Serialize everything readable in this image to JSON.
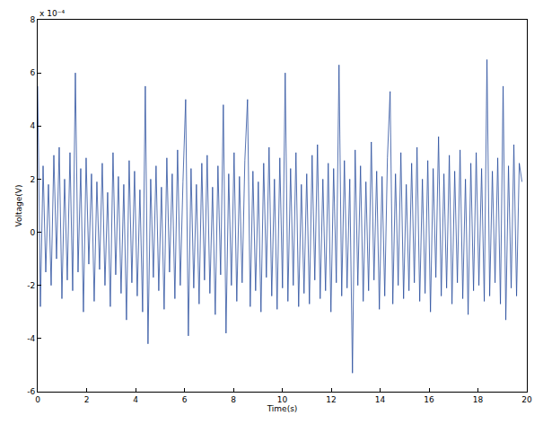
{
  "chart_data": {
    "type": "line",
    "x_label": "Time(s)",
    "y_label": "Voltage(V)",
    "annotations": [
      "x 10⁻⁴"
    ],
    "color": "#2b4f9e",
    "grid": false,
    "xlim": [
      0,
      20
    ],
    "xticks": [
      0,
      2,
      4,
      6,
      8,
      10,
      12,
      14,
      16,
      18,
      20
    ],
    "ylim": [
      -6,
      8
    ],
    "yticks": [
      -6,
      -4,
      -2,
      0,
      2,
      4,
      6,
      8
    ],
    "x": [
      0,
      0.11,
      0.22,
      0.33,
      0.44,
      0.55,
      0.66,
      0.77,
      0.88,
      0.99,
      1.1,
      1.21,
      1.32,
      1.43,
      1.54,
      1.65,
      1.76,
      1.87,
      1.98,
      2.09,
      2.2,
      2.31,
      2.42,
      2.53,
      2.64,
      2.75,
      2.86,
      2.97,
      3.08,
      3.19,
      3.3,
      3.41,
      3.52,
      3.63,
      3.74,
      3.85,
      3.96,
      4.07,
      4.18,
      4.29,
      4.4,
      4.51,
      4.62,
      4.73,
      4.84,
      4.95,
      5.06,
      5.17,
      5.28,
      5.39,
      5.5,
      5.61,
      5.72,
      5.83,
      5.94,
      6.05,
      6.16,
      6.27,
      6.38,
      6.49,
      6.6,
      6.71,
      6.82,
      6.93,
      7.04,
      7.15,
      7.26,
      7.37,
      7.48,
      7.59,
      7.7,
      7.81,
      7.92,
      8.03,
      8.14,
      8.25,
      8.36,
      8.47,
      8.58,
      8.69,
      8.8,
      8.91,
      9.02,
      9.13,
      9.24,
      9.35,
      9.46,
      9.57,
      9.68,
      9.79,
      9.9,
      10.01,
      10.12,
      10.23,
      10.34,
      10.45,
      10.56,
      10.67,
      10.78,
      10.89,
      11,
      11.11,
      11.22,
      11.33,
      11.44,
      11.55,
      11.66,
      11.77,
      11.88,
      11.99,
      12.1,
      12.21,
      12.32,
      12.43,
      12.54,
      12.65,
      12.76,
      12.87,
      12.98,
      13.09,
      13.2,
      13.31,
      13.42,
      13.53,
      13.64,
      13.75,
      13.86,
      13.97,
      14.08,
      14.19,
      14.3,
      14.41,
      14.52,
      14.63,
      14.74,
      14.85,
      14.96,
      15.07,
      15.18,
      15.29,
      15.4,
      15.51,
      15.62,
      15.73,
      15.84,
      15.95,
      16.06,
      16.17,
      16.28,
      16.39,
      16.5,
      16.61,
      16.72,
      16.83,
      16.94,
      17.05,
      17.16,
      17.27,
      17.38,
      17.49,
      17.6,
      17.71,
      17.82,
      17.93,
      18.04,
      18.15,
      18.26,
      18.37,
      18.48,
      18.59,
      18.7,
      18.81,
      18.92,
      19.03,
      19.14,
      19.25,
      19.36,
      19.47,
      19.58,
      19.69,
      19.8
    ],
    "values": [
      5.5,
      -2.8,
      2.5,
      -1.5,
      1.8,
      -2.0,
      2.9,
      -1.0,
      3.2,
      -2.5,
      2.0,
      -1.8,
      3.0,
      -2.2,
      6.0,
      -1.5,
      2.4,
      -3.0,
      2.8,
      -1.2,
      2.2,
      -2.6,
      1.9,
      -1.4,
      2.6,
      -2.0,
      1.5,
      -2.8,
      3.0,
      -1.6,
      2.1,
      -2.3,
      1.8,
      -3.3,
      2.7,
      -1.9,
      2.3,
      -2.4,
      1.6,
      -3.0,
      5.5,
      -4.2,
      2.0,
      -1.7,
      2.5,
      -2.2,
      1.7,
      -2.9,
      2.8,
      -1.5,
      2.2,
      -2.5,
      3.1,
      -2.0,
      1.9,
      5.0,
      -3.9,
      2.4,
      -2.1,
      1.8,
      -2.7,
      2.6,
      -1.8,
      2.9,
      -2.3,
      1.7,
      -3.1,
      2.5,
      -1.6,
      4.8,
      -3.8,
      2.2,
      -2.0,
      3.0,
      -2.6,
      2.1,
      -1.9,
      2.7,
      5.0,
      -2.8,
      2.3,
      -2.2,
      1.9,
      -3.0,
      2.6,
      -1.7,
      3.2,
      -2.4,
      2.0,
      -2.9,
      2.8,
      -2.1,
      6.0,
      -2.6,
      2.4,
      -2.0,
      3.0,
      -2.8,
      1.8,
      -2.3,
      2.2,
      -2.7,
      2.9,
      -1.8,
      3.3,
      -2.5,
      2.0,
      -2.2,
      2.6,
      -3.0,
      2.4,
      -1.9,
      6.3,
      -2.4,
      2.7,
      -2.1,
      2.0,
      -5.3,
      3.1,
      -2.0,
      2.5,
      -2.6,
      1.9,
      -2.2,
      3.4,
      -1.8,
      2.3,
      -2.9,
      2.1,
      -2.4,
      2.8,
      5.3,
      -2.7,
      2.2,
      -2.0,
      3.0,
      -2.5,
      1.8,
      -2.2,
      2.6,
      -1.9,
      3.2,
      -2.6,
      2.0,
      -2.3,
      2.7,
      -3.0,
      2.4,
      -1.7,
      3.6,
      -2.4,
      2.2,
      -2.1,
      2.9,
      -2.7,
      2.3,
      -1.9,
      3.1,
      -2.5,
      2.0,
      -3.1,
      2.6,
      -2.2,
      3.0,
      -2.0,
      2.4,
      -2.6,
      6.5,
      -2.4,
      2.3,
      -1.9,
      2.8,
      -2.7,
      5.5,
      -3.3,
      2.5,
      -2.1,
      3.3,
      -2.4,
      2.6,
      1.9
    ]
  }
}
